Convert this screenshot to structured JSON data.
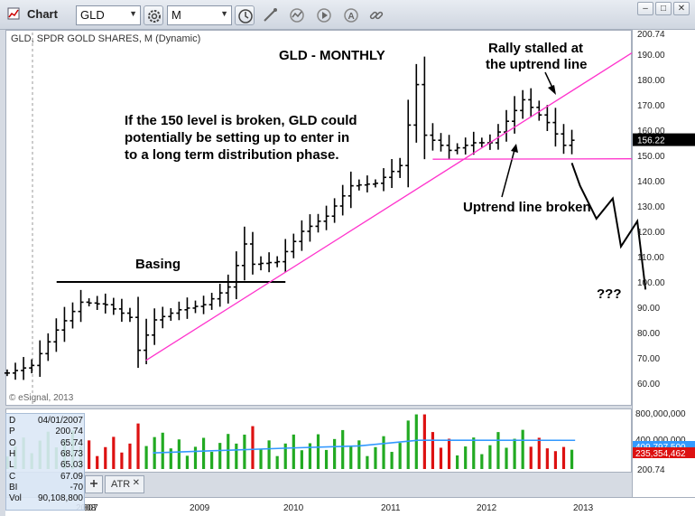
{
  "window": {
    "title": "Chart"
  },
  "toolbar": {
    "symbol": "GLD",
    "interval": "M"
  },
  "chart_header": "GLD, SPDR GOLD SHARES, M (Dynamic)",
  "copyright": "© eSignal, 2013",
  "price_axis": {
    "ticks": [
      "60.00",
      "70.00",
      "80.00",
      "90.00",
      "100.00",
      "110.00",
      "120.00",
      "130.00",
      "140.00",
      "150.00",
      "160.00",
      "170.00",
      "180.00",
      "190.00"
    ],
    "top_value": "200.74",
    "last_price": "156.22"
  },
  "volume_axis": {
    "ticks": [
      "800,000,000",
      "400,000,000"
    ],
    "ma_value": "409,797,500",
    "volume_value": "235,354,462",
    "bottom_value": "200.74"
  },
  "time_axis": [
    "007",
    "2008",
    "2009",
    "2010",
    "2011",
    "2012",
    "2013"
  ],
  "data_window": [
    {
      "label": "D",
      "value": "04/01/2007"
    },
    {
      "label": "P",
      "value": "200.74"
    },
    {
      "label": "O",
      "value": "65.74"
    },
    {
      "label": "H",
      "value": "68.73"
    },
    {
      "label": "L",
      "value": "65.03"
    },
    {
      "label": "C",
      "value": "67.09"
    },
    {
      "label": "BI",
      "value": "-70"
    },
    {
      "label": "Vol",
      "value": "90,108,800"
    }
  ],
  "tabs": [
    "ATR"
  ],
  "annotations": {
    "title": "GLD - MONTHLY",
    "note_line1": "If the 150 level is broken, GLD could",
    "note_line2": "potentially be setting up to enter in",
    "note_line3": "to a long term distribution phase.",
    "basing": "Basing",
    "rally_line1": "Rally stalled at",
    "rally_line2": "the uptrend line",
    "broken": "Uptrend line broken",
    "question": "???"
  },
  "colors": {
    "bars": "#000000",
    "trendline": "#ff33cc",
    "volume_up": "#22aa22",
    "volume_down": "#dd1111",
    "volume_ma": "#3399ff",
    "price_label_bg": "#000000",
    "volume_label_bg": "#dd1111",
    "ma_label_bg": "#3399ff"
  },
  "chart_data": {
    "type": "ohlc",
    "interval": "monthly",
    "x": [
      "2007-06",
      "2007-09",
      "2007-12",
      "2008-03",
      "2008-06",
      "2008-09",
      "2008-10",
      "2008-12",
      "2009-03",
      "2009-06",
      "2009-09",
      "2009-11",
      "2009-12",
      "2010-03",
      "2010-06",
      "2010-09",
      "2010-12",
      "2011-03",
      "2011-06",
      "2011-08",
      "2011-09",
      "2011-12",
      "2012-03",
      "2012-05",
      "2012-09",
      "2012-12",
      "2013-02",
      "2013-03"
    ],
    "close": [
      64,
      67,
      81,
      92,
      91,
      86,
      73,
      85,
      89,
      91,
      98,
      115,
      107,
      108,
      120,
      126,
      138,
      139,
      146,
      178,
      158,
      152,
      155,
      155,
      172,
      163,
      154,
      156
    ],
    "ylim": [
      56,
      203
    ],
    "levels": [
      {
        "name": "Basing",
        "value": 100
      },
      {
        "name": "150 level",
        "value": 148.5
      }
    ],
    "projection": [
      {
        "x": "2013-04",
        "y": 138
      },
      {
        "x": "2013-06",
        "y": 125
      },
      {
        "x": "2013-08",
        "y": 133
      },
      {
        "x": "2013-09",
        "y": 114
      },
      {
        "x": "2013-11",
        "y": 124
      },
      {
        "x": "2013-12",
        "y": 97
      }
    ],
    "volume_ma_level": 409797500,
    "volume_last": 235354462
  }
}
